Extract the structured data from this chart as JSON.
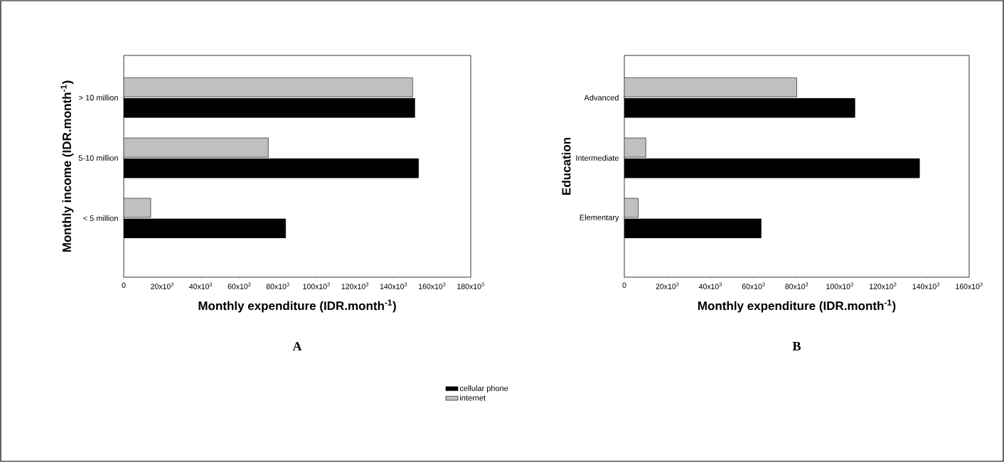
{
  "chart_data": [
    {
      "type": "bar",
      "orientation": "horizontal",
      "title": "A",
      "xlabel": "Monthly expenditure (IDR.month$^{-1}$)",
      "ylabel": "Monthly income (IDR.month$^{-1}$)",
      "categories": [
        "> 10 million",
        "5-10 million",
        "< 5 million"
      ],
      "series": [
        {
          "name": "cellular phone",
          "color": "#000000",
          "values": [
            151000,
            153000,
            84000
          ]
        },
        {
          "name": "internet",
          "color": "#c0c0c0",
          "values": [
            150000,
            75000,
            14000
          ]
        }
      ],
      "xlim": [
        0,
        180000
      ],
      "xticks": [
        0,
        {
          "value": 20000,
          "label": "20x10$^{3}$"
        },
        {
          "value": 40000,
          "label": "40x10$^{3}$"
        },
        {
          "value": 60000,
          "label": "60x10$^{3}$"
        },
        {
          "value": 80000,
          "label": "80x10$^{3}$"
        },
        {
          "value": 100000,
          "label": "100x10$^{3}$"
        },
        {
          "value": 120000,
          "label": "120x10$^{3}$"
        },
        {
          "value": 140000,
          "label": "140x10$^{3}$"
        },
        {
          "value": 160000,
          "label": "160x10$^{3}$"
        },
        {
          "value": 180000,
          "label": "180x10$^{3}$"
        }
      ],
      "legend": "bottom"
    },
    {
      "type": "bar",
      "orientation": "horizontal",
      "title": "B",
      "xlabel": "Monthly expenditure (IDR.month$^{-1}$)",
      "ylabel": "Education",
      "categories": [
        "Advanced",
        "Intermediate",
        "Elementary"
      ],
      "series": [
        {
          "color": "#000000",
          "values": [
            107000,
            137000,
            63500
          ]
        },
        {
          "color": "#c0c0c0",
          "values": [
            80000,
            10000,
            6500
          ]
        }
      ],
      "xlim": [
        0,
        160000
      ],
      "xticks": [
        0,
        {
          "value": 20000,
          "label": "20x10$^{3}$"
        },
        {
          "value": 40000,
          "label": "40x10$^{3}$"
        },
        {
          "value": 60000,
          "label": "60x10$^{3}$"
        },
        {
          "value": 80000,
          "label": "80x10$^{3}$"
        },
        {
          "value": 100000,
          "label": "100x10$^{3}$"
        },
        {
          "value": 120000,
          "label": "120x10$^{3}$"
        },
        {
          "value": 140000,
          "label": "140x10$^{3}$"
        },
        {
          "value": 160000,
          "label": "160x10$^{3}$"
        }
      ]
    }
  ]
}
